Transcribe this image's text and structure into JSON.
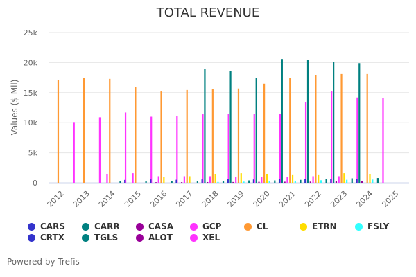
{
  "title": "TOTAL REVENUE",
  "credits": "Powered by Trefis",
  "chart_data": {
    "type": "bar",
    "title": "TOTAL REVENUE",
    "xlabel": "",
    "ylabel": "Values ($ Mil)",
    "ylim": [
      0,
      25000
    ],
    "yticks": [
      0,
      5000,
      10000,
      15000,
      20000,
      25000
    ],
    "ytick_labels": [
      "0",
      "5k",
      "10k",
      "15k",
      "20k",
      "25k"
    ],
    "grid": true,
    "legend_position": "bottom",
    "categories": [
      "2012",
      "2013",
      "2014",
      "2015",
      "2016",
      "2017",
      "2018",
      "2019",
      "2020",
      "2021",
      "2022",
      "2023",
      "2024",
      "2025"
    ],
    "series": [
      {
        "name": "CARS",
        "color": "#3333cc",
        "values": [
          null,
          null,
          null,
          480,
          560,
          500,
          560,
          570,
          550,
          600,
          640,
          660,
          690,
          null
        ]
      },
      {
        "name": "CARR",
        "color": "#008080",
        "values": [
          null,
          null,
          null,
          null,
          null,
          null,
          18900,
          18600,
          17500,
          20600,
          20400,
          20100,
          19900,
          null
        ]
      },
      {
        "name": "CASA",
        "color": "#990099",
        "values": [
          null,
          null,
          null,
          null,
          90,
          100,
          120,
          130,
          160,
          180,
          200,
          250,
          270,
          null
        ]
      },
      {
        "name": "GCP",
        "color": "#ff33ff",
        "values": [
          null,
          null,
          1500,
          1600,
          1100,
          1100,
          1100,
          1000,
          990,
          1000,
          1100,
          1100,
          null,
          null
        ]
      },
      {
        "name": "CL",
        "color": "#ff9933",
        "values": [
          17100,
          17400,
          17300,
          16000,
          15200,
          15450,
          15550,
          15700,
          16500,
          17400,
          17950,
          18100,
          18100,
          null
        ]
      },
      {
        "name": "ETRN",
        "color": "#ffdd00",
        "values": [
          null,
          null,
          null,
          null,
          1000,
          1100,
          1500,
          1600,
          1500,
          1400,
          1400,
          1600,
          1500,
          null
        ]
      },
      {
        "name": "FSLY",
        "color": "#33ffff",
        "values": [
          null,
          null,
          null,
          null,
          null,
          null,
          140,
          200,
          290,
          350,
          430,
          500,
          540,
          null
        ]
      },
      {
        "name": "CRTX",
        "color": "#3333cc",
        "values": [
          null,
          null,
          null,
          null,
          null,
          null,
          null,
          null,
          null,
          null,
          null,
          null,
          null,
          null
        ]
      },
      {
        "name": "TGLS",
        "color": "#008080",
        "values": [
          null,
          null,
          240,
          230,
          300,
          310,
          300,
          400,
          400,
          490,
          600,
          750,
          800,
          null
        ]
      },
      {
        "name": "ALOT",
        "color": "#990099",
        "values": [
          null,
          null,
          null,
          null,
          null,
          null,
          null,
          null,
          null,
          null,
          null,
          null,
          null,
          null
        ]
      },
      {
        "name": "XEL",
        "color": "#ff33ff",
        "values": [
          10100,
          10900,
          11700,
          11000,
          11100,
          11400,
          11500,
          11500,
          11500,
          13400,
          15300,
          14200,
          14100,
          null
        ]
      }
    ],
    "bar_order": [
      "CARS",
      "CARR",
      "CASA",
      "GCP",
      "CL",
      "ETRN",
      "FSLY",
      "CRTX",
      "TGLS",
      "ALOT",
      "XEL"
    ]
  },
  "legend": [
    {
      "label": "CARS",
      "color": "#3333cc"
    },
    {
      "label": "CARR",
      "color": "#008080"
    },
    {
      "label": "CASA",
      "color": "#990099"
    },
    {
      "label": "GCP",
      "color": "#ff33ff"
    },
    {
      "label": "CL",
      "color": "#ff9933"
    },
    {
      "label": "ETRN",
      "color": "#ffdd00"
    },
    {
      "label": "FSLY",
      "color": "#33ffff"
    },
    {
      "label": "CRTX",
      "color": "#3333cc"
    },
    {
      "label": "TGLS",
      "color": "#008080"
    },
    {
      "label": "ALOT",
      "color": "#990099"
    },
    {
      "label": "XEL",
      "color": "#ff33ff"
    }
  ]
}
